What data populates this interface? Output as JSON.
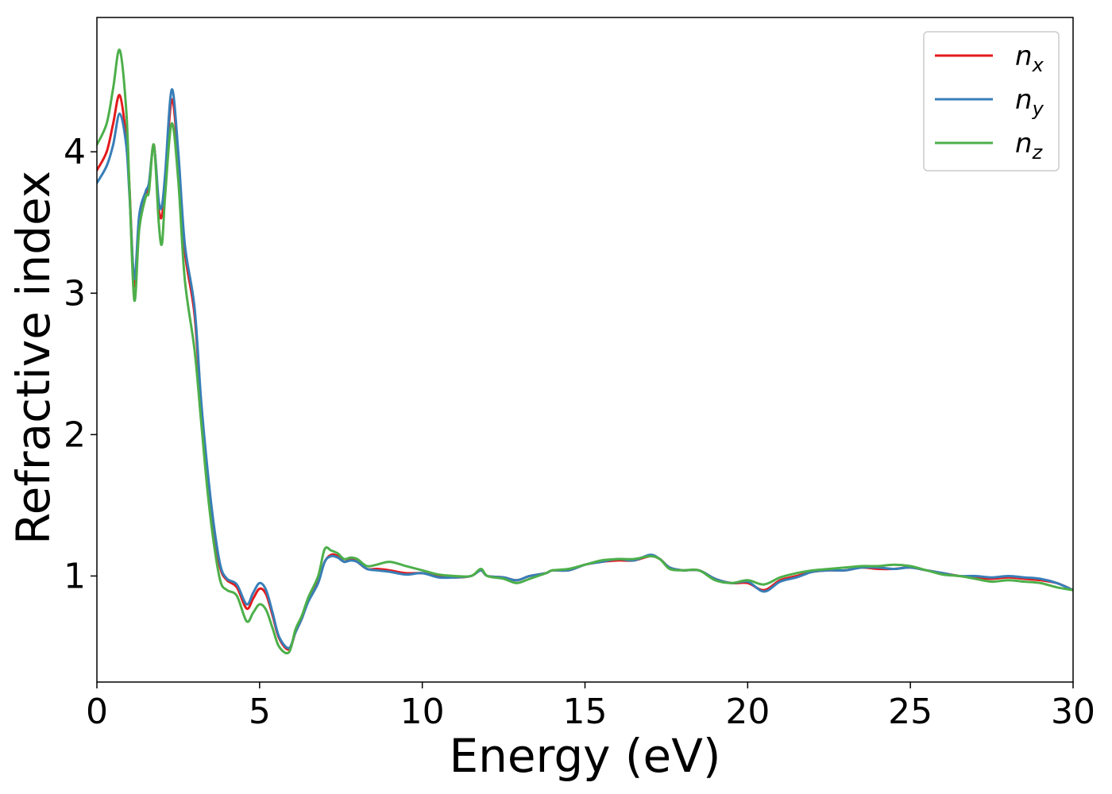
{
  "chart_data": {
    "type": "line",
    "title": "",
    "xlabel": "Energy (eV)",
    "ylabel": "Refractive index",
    "xlim": [
      0,
      30
    ],
    "ylim": [
      0.25,
      4.95
    ],
    "xticks": [
      0,
      5,
      10,
      15,
      20,
      25,
      30
    ],
    "xtick_labels": [
      "0",
      "5",
      "10",
      "15",
      "20",
      "25",
      "30"
    ],
    "yticks": [
      1,
      2,
      3,
      4
    ],
    "ytick_labels": [
      "1",
      "2",
      "3",
      "4"
    ],
    "grid": false,
    "legend_position": "top-right",
    "series": [
      {
        "name": "n",
        "subscript": "x",
        "color": "#e41a1c",
        "x": [
          0,
          0.3,
          0.5,
          0.7,
          0.9,
          1.0,
          1.15,
          1.3,
          1.5,
          1.6,
          1.75,
          1.9,
          2.0,
          2.1,
          2.3,
          2.5,
          2.7,
          3.0,
          3.2,
          3.4,
          3.6,
          3.8,
          4.0,
          4.3,
          4.6,
          4.8,
          5.0,
          5.2,
          5.4,
          5.6,
          5.9,
          6.1,
          6.3,
          6.5,
          6.8,
          7.0,
          7.2,
          7.4,
          7.6,
          7.8,
          8.0,
          8.3,
          8.6,
          9.0,
          9.5,
          10.0,
          10.5,
          11.0,
          11.5,
          11.8,
          12.0,
          12.5,
          12.9,
          13.3,
          13.8,
          14.0,
          14.5,
          15.0,
          15.5,
          16.0,
          16.5,
          17.0,
          17.3,
          17.6,
          18.0,
          18.5,
          19.0,
          19.5,
          20.0,
          20.5,
          21.0,
          21.5,
          22.0,
          22.5,
          23.0,
          23.5,
          24.0,
          24.5,
          25.0,
          25.5,
          26.0,
          26.5,
          27.0,
          27.5,
          28.0,
          28.5,
          29.0,
          29.5,
          30.0
        ],
        "y": [
          3.87,
          4.0,
          4.2,
          4.4,
          4.1,
          3.75,
          3.05,
          3.5,
          3.7,
          3.75,
          4.05,
          3.6,
          3.55,
          3.8,
          4.37,
          3.95,
          3.3,
          2.85,
          2.2,
          1.7,
          1.3,
          1.05,
          0.97,
          0.92,
          0.77,
          0.84,
          0.91,
          0.87,
          0.72,
          0.56,
          0.48,
          0.6,
          0.7,
          0.83,
          0.96,
          1.1,
          1.15,
          1.14,
          1.1,
          1.12,
          1.1,
          1.05,
          1.05,
          1.04,
          1.02,
          1.02,
          1.0,
          0.99,
          1.0,
          1.04,
          1.0,
          0.99,
          0.97,
          1.0,
          1.02,
          1.04,
          1.04,
          1.08,
          1.1,
          1.11,
          1.11,
          1.14,
          1.12,
          1.06,
          1.04,
          1.04,
          0.98,
          0.95,
          0.95,
          0.9,
          0.97,
          1.0,
          1.03,
          1.04,
          1.04,
          1.06,
          1.05,
          1.05,
          1.06,
          1.04,
          1.02,
          1.0,
          0.99,
          0.98,
          0.99,
          0.98,
          0.97,
          0.95,
          0.9
        ]
      },
      {
        "name": "n",
        "subscript": "y",
        "color": "#377eb8",
        "x": [
          0,
          0.3,
          0.5,
          0.7,
          0.9,
          1.0,
          1.15,
          1.3,
          1.5,
          1.6,
          1.75,
          1.9,
          2.0,
          2.1,
          2.3,
          2.5,
          2.7,
          3.0,
          3.2,
          3.4,
          3.6,
          3.8,
          4.0,
          4.3,
          4.6,
          4.8,
          5.0,
          5.2,
          5.4,
          5.6,
          5.9,
          6.1,
          6.3,
          6.5,
          6.8,
          7.0,
          7.2,
          7.4,
          7.6,
          7.8,
          8.0,
          8.3,
          8.6,
          9.0,
          9.5,
          10.0,
          10.5,
          11.0,
          11.5,
          11.8,
          12.0,
          12.5,
          12.9,
          13.3,
          13.8,
          14.0,
          14.5,
          15.0,
          15.5,
          16.0,
          16.5,
          17.0,
          17.3,
          17.6,
          18.0,
          18.5,
          19.0,
          19.5,
          20.0,
          20.5,
          21.0,
          21.5,
          22.0,
          22.5,
          23.0,
          23.5,
          24.0,
          24.5,
          25.0,
          25.5,
          26.0,
          26.5,
          27.0,
          27.5,
          28.0,
          28.5,
          29.0,
          29.5,
          30.0
        ],
        "y": [
          3.78,
          3.9,
          4.05,
          4.27,
          4.05,
          3.7,
          3.1,
          3.55,
          3.72,
          3.78,
          4.04,
          3.65,
          3.62,
          3.85,
          4.44,
          4.0,
          3.35,
          2.9,
          2.25,
          1.75,
          1.35,
          1.07,
          0.98,
          0.94,
          0.8,
          0.88,
          0.95,
          0.9,
          0.74,
          0.57,
          0.49,
          0.6,
          0.7,
          0.82,
          0.95,
          1.1,
          1.14,
          1.13,
          1.1,
          1.11,
          1.1,
          1.05,
          1.04,
          1.03,
          1.01,
          1.02,
          0.99,
          0.99,
          1.0,
          1.04,
          1.0,
          0.99,
          0.97,
          1.0,
          1.02,
          1.04,
          1.04,
          1.08,
          1.1,
          1.12,
          1.11,
          1.15,
          1.12,
          1.06,
          1.04,
          1.04,
          0.98,
          0.95,
          0.96,
          0.89,
          0.96,
          0.99,
          1.03,
          1.04,
          1.04,
          1.06,
          1.06,
          1.05,
          1.06,
          1.04,
          1.02,
          1.0,
          1.0,
          0.99,
          1.0,
          0.99,
          0.98,
          0.95,
          0.9
        ]
      },
      {
        "name": "n",
        "subscript": "z",
        "color": "#4daf4a",
        "x": [
          0,
          0.3,
          0.5,
          0.7,
          0.9,
          1.0,
          1.15,
          1.3,
          1.5,
          1.6,
          1.75,
          1.9,
          2.0,
          2.1,
          2.3,
          2.5,
          2.7,
          3.0,
          3.2,
          3.4,
          3.6,
          3.8,
          4.0,
          4.3,
          4.6,
          4.8,
          5.0,
          5.2,
          5.4,
          5.6,
          5.9,
          6.1,
          6.3,
          6.5,
          6.8,
          7.0,
          7.2,
          7.4,
          7.6,
          7.8,
          8.0,
          8.3,
          8.6,
          9.0,
          9.5,
          10.0,
          10.5,
          11.0,
          11.5,
          11.8,
          12.0,
          12.5,
          12.9,
          13.3,
          13.8,
          14.0,
          14.5,
          15.0,
          15.5,
          16.0,
          16.5,
          17.0,
          17.3,
          17.6,
          18.0,
          18.5,
          19.0,
          19.5,
          20.0,
          20.5,
          21.0,
          21.5,
          22.0,
          22.5,
          23.0,
          23.5,
          24.0,
          24.5,
          25.0,
          25.5,
          26.0,
          26.5,
          27.0,
          27.5,
          28.0,
          28.5,
          29.0,
          29.5,
          30.0
        ],
        "y": [
          4.05,
          4.2,
          4.45,
          4.72,
          4.3,
          3.75,
          2.95,
          3.45,
          3.68,
          3.72,
          4.05,
          3.5,
          3.35,
          3.7,
          4.2,
          3.8,
          3.1,
          2.6,
          2.1,
          1.6,
          1.22,
          0.96,
          0.9,
          0.86,
          0.68,
          0.74,
          0.8,
          0.76,
          0.63,
          0.5,
          0.46,
          0.62,
          0.72,
          0.85,
          1.0,
          1.19,
          1.18,
          1.16,
          1.12,
          1.13,
          1.12,
          1.07,
          1.08,
          1.1,
          1.07,
          1.04,
          1.01,
          1.0,
          1.0,
          1.05,
          1.0,
          0.98,
          0.95,
          0.98,
          1.02,
          1.04,
          1.05,
          1.08,
          1.11,
          1.12,
          1.12,
          1.14,
          1.12,
          1.05,
          1.04,
          1.04,
          0.97,
          0.95,
          0.97,
          0.94,
          0.99,
          1.02,
          1.04,
          1.05,
          1.06,
          1.07,
          1.07,
          1.08,
          1.07,
          1.04,
          1.01,
          1.0,
          0.98,
          0.96,
          0.97,
          0.96,
          0.95,
          0.92,
          0.9
        ]
      }
    ]
  }
}
